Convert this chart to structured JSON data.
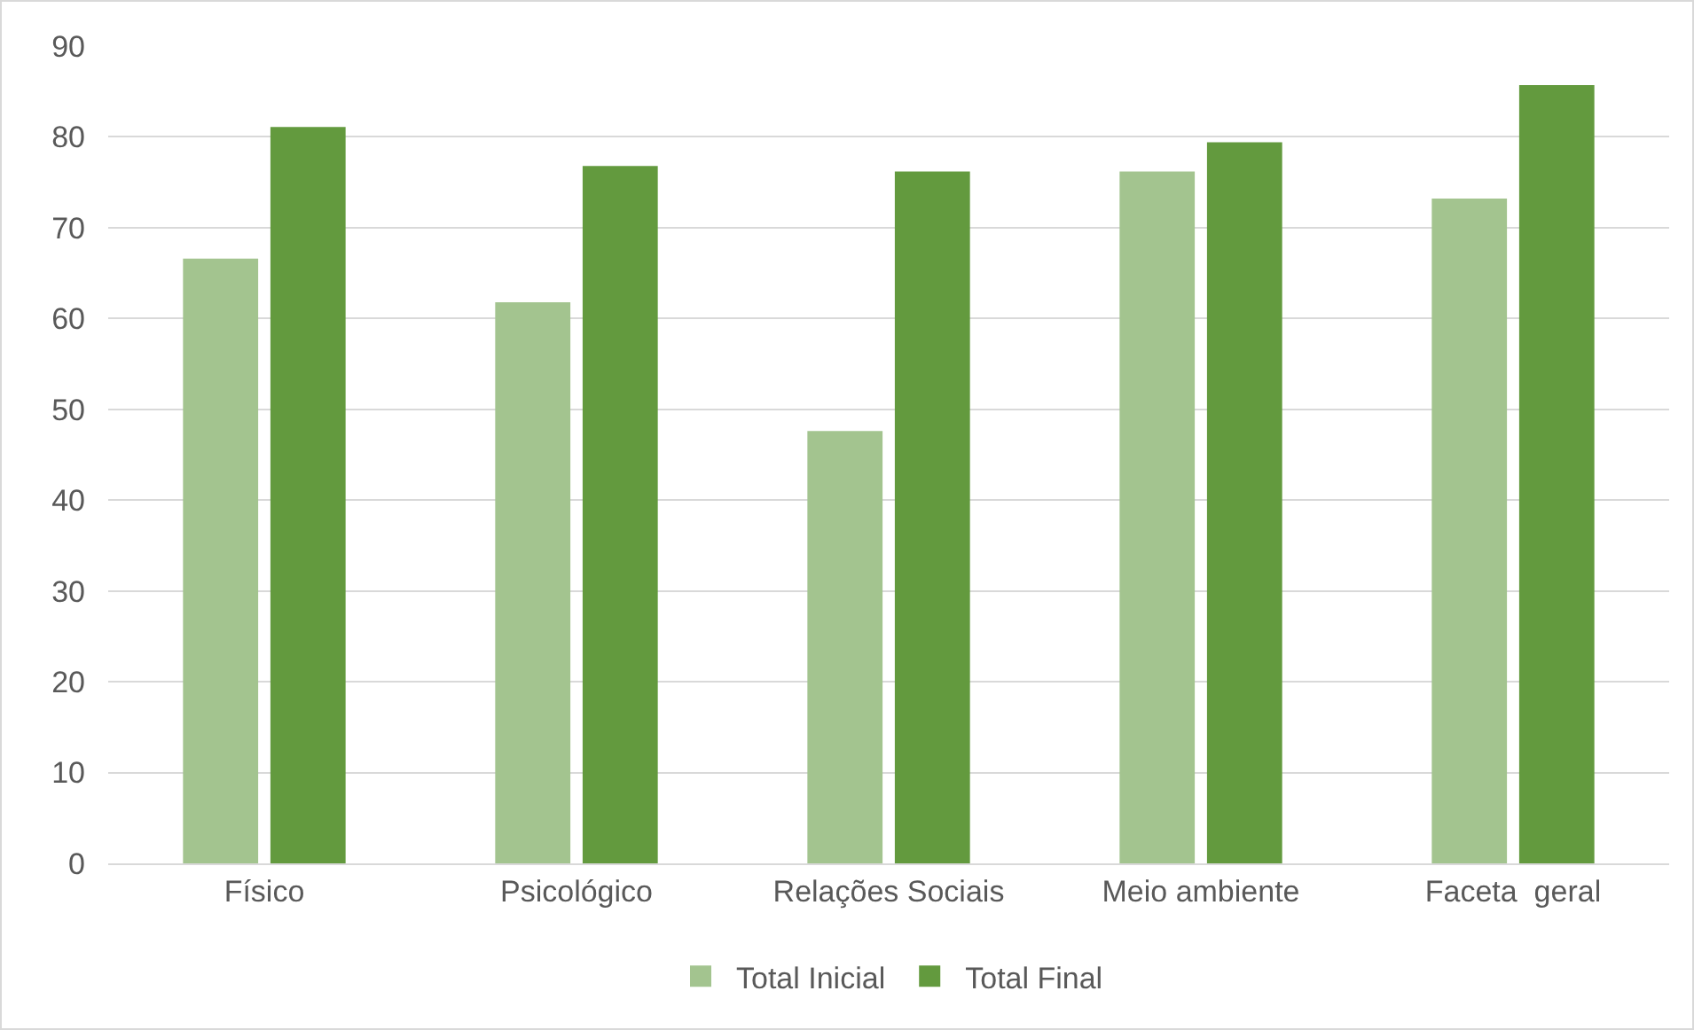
{
  "chart_data": {
    "type": "bar",
    "categories": [
      "Físico",
      "Psicológico",
      "Relações Sociais",
      "Meio ambiente",
      "Faceta  geral"
    ],
    "series": [
      {
        "name": "Total Inicial",
        "color": "#a3c48f",
        "values": [
          66.6,
          61.8,
          47.6,
          76.2,
          73.2
        ]
      },
      {
        "name": "Total Final",
        "color": "#639a3e",
        "values": [
          81.1,
          76.8,
          76.2,
          79.4,
          85.7
        ]
      }
    ],
    "ylim": [
      0,
      90
    ],
    "yticks": [
      0,
      10,
      20,
      30,
      40,
      50,
      60,
      70,
      80,
      90
    ],
    "grid": "y",
    "legend": "bottom"
  }
}
